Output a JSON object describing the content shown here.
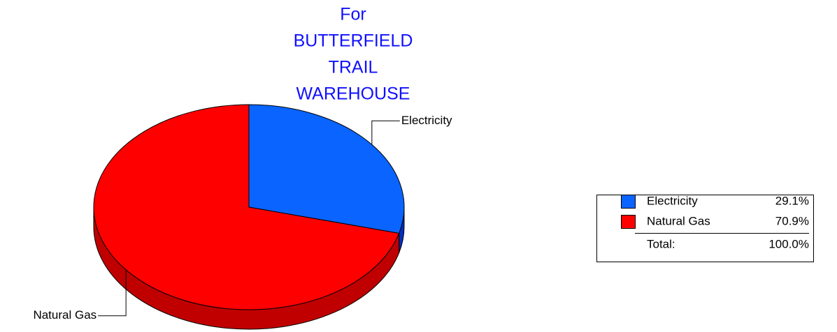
{
  "chart_data": {
    "type": "pie",
    "title": [
      "For",
      "BUTTERFIELD",
      "TRAIL",
      "WAREHOUSE"
    ],
    "categories": [
      "Electricity",
      "Natural Gas"
    ],
    "values": [
      29.1,
      70.9
    ],
    "value_labels": [
      "29.1%",
      "70.9%"
    ],
    "colors": [
      "#0a64ff",
      "#ff0000"
    ],
    "side_colors": [
      "#0030c0",
      "#c00000"
    ],
    "total_label": "Total:",
    "total_value_label": "100.0%",
    "legend": "right"
  }
}
